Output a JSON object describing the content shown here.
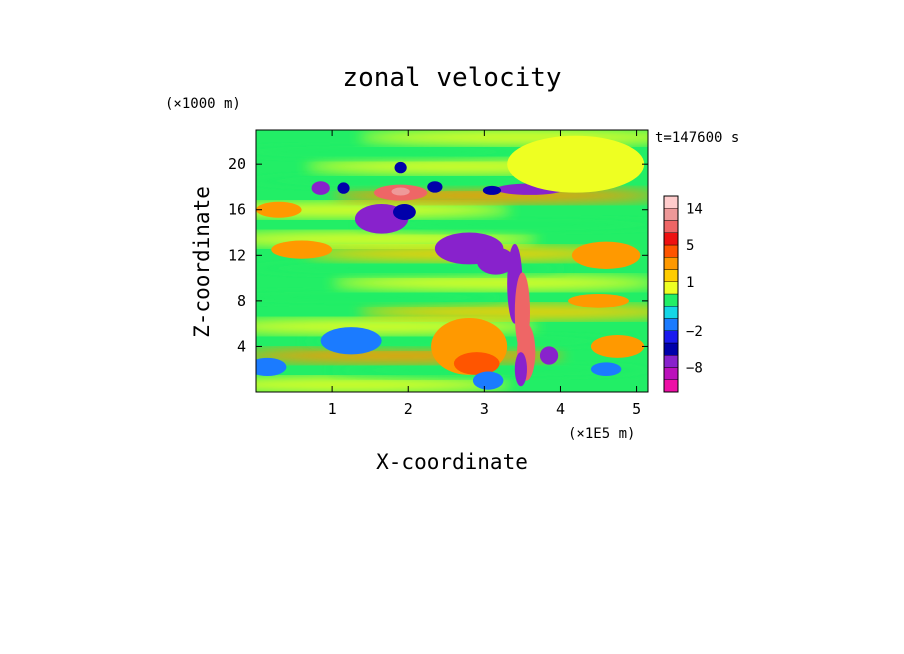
{
  "chart_data": {
    "type": "heatmap",
    "title": "zonal velocity",
    "xlabel": "X-coordinate",
    "ylabel": "Z-coordinate",
    "x_unit": "(×1E5 m)",
    "y_unit": "(×1000 m)",
    "time_label": "t=147600 s",
    "xlim": [
      0,
      5.15
    ],
    "ylim": [
      0,
      23
    ],
    "x_ticks": [
      1,
      2,
      3,
      4,
      5
    ],
    "y_ticks": [
      4,
      8,
      12,
      16,
      20
    ],
    "colorbar": {
      "tick_labels": [
        "14",
        "5",
        "1",
        "−2",
        "−8"
      ],
      "tick_levels": [
        14,
        5,
        1,
        -2,
        -8
      ],
      "levels": [
        -14,
        -11,
        -8,
        -5,
        -3,
        -2,
        -1,
        -0.5,
        0.5,
        1,
        2,
        3,
        5,
        8,
        11,
        14,
        17
      ],
      "colors": [
        "#ee0fa6",
        "#bb11bb",
        "#8822cc",
        "#0000aa",
        "#1a1aee",
        "#1b7bff",
        "#14d6e6",
        "#22ee66",
        "#eeff22",
        "#ffcc00",
        "#ff9900",
        "#ff5500",
        "#ee1111",
        "#ee6666",
        "#ee9999",
        "#ffcccc"
      ]
    },
    "features": [
      {
        "x": 0.85,
        "z": 17.9,
        "w": 0.12,
        "h": 0.6,
        "value": -7
      },
      {
        "x": 1.15,
        "z": 17.9,
        "w": 0.08,
        "h": 0.5,
        "value": -5
      },
      {
        "x": 1.9,
        "z": 19.7,
        "w": 0.08,
        "h": 0.5,
        "value": -5
      },
      {
        "x": 2.35,
        "z": 18.0,
        "w": 0.1,
        "h": 0.5,
        "value": -5
      },
      {
        "x": 1.9,
        "z": 17.5,
        "w": 0.35,
        "h": 0.7,
        "value": 8
      },
      {
        "x": 1.9,
        "z": 17.6,
        "w": 0.12,
        "h": 0.35,
        "value": 12
      },
      {
        "x": 1.65,
        "z": 15.2,
        "w": 0.35,
        "h": 1.3,
        "value": -6
      },
      {
        "x": 1.95,
        "z": 15.8,
        "w": 0.15,
        "h": 0.7,
        "value": -4
      },
      {
        "x": 2.8,
        "z": 12.6,
        "w": 0.45,
        "h": 1.4,
        "value": -7
      },
      {
        "x": 3.15,
        "z": 11.5,
        "w": 0.25,
        "h": 1.2,
        "value": -6
      },
      {
        "x": 3.4,
        "z": 9.5,
        "w": 0.1,
        "h": 3.5,
        "value": -7
      },
      {
        "x": 3.5,
        "z": 7.0,
        "w": 0.1,
        "h": 3.5,
        "value": 10
      },
      {
        "x": 3.55,
        "z": 3.5,
        "w": 0.12,
        "h": 2.5,
        "value": 9
      },
      {
        "x": 3.48,
        "z": 2.0,
        "w": 0.08,
        "h": 1.5,
        "value": -6
      },
      {
        "x": 3.6,
        "z": 17.8,
        "w": 0.45,
        "h": 0.5,
        "value": -6
      },
      {
        "x": 3.1,
        "z": 17.7,
        "w": 0.12,
        "h": 0.4,
        "value": -4
      },
      {
        "x": 3.85,
        "z": 3.2,
        "w": 0.12,
        "h": 0.8,
        "value": -6
      },
      {
        "x": 2.8,
        "z": 4.0,
        "w": 0.5,
        "h": 2.5,
        "value": 2
      },
      {
        "x": 2.9,
        "z": 2.5,
        "w": 0.3,
        "h": 1.0,
        "value": 4
      },
      {
        "x": 1.25,
        "z": 4.5,
        "w": 0.4,
        "h": 1.2,
        "value": -1.5
      },
      {
        "x": 3.05,
        "z": 1.0,
        "w": 0.2,
        "h": 0.8,
        "value": -1.5
      },
      {
        "x": 0.15,
        "z": 2.2,
        "w": 0.25,
        "h": 0.8,
        "value": -1.5
      },
      {
        "x": 4.2,
        "z": 20.0,
        "w": 0.9,
        "h": 2.5,
        "value": 0.7
      },
      {
        "x": 0.3,
        "z": 16.0,
        "w": 0.3,
        "h": 0.7,
        "value": 2
      },
      {
        "x": 0.6,
        "z": 12.5,
        "w": 0.4,
        "h": 0.8,
        "value": 2
      },
      {
        "x": 4.6,
        "z": 12.0,
        "w": 0.45,
        "h": 1.2,
        "value": 2
      },
      {
        "x": 4.5,
        "z": 8.0,
        "w": 0.4,
        "h": 0.6,
        "value": 2
      },
      {
        "x": 4.75,
        "z": 4.0,
        "w": 0.35,
        "h": 1.0,
        "value": 2
      },
      {
        "x": 4.6,
        "z": 2.0,
        "w": 0.2,
        "h": 0.6,
        "value": -1.5
      }
    ]
  }
}
